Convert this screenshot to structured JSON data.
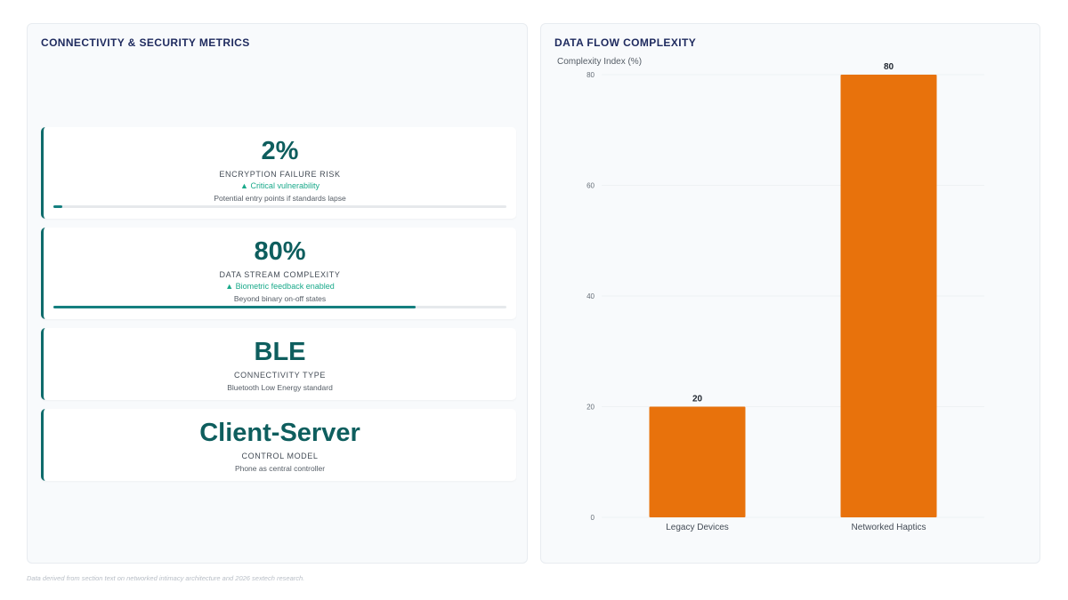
{
  "left_panel": {
    "title": "CONNECTIVITY & SECURITY METRICS",
    "kpis": [
      {
        "value": "2%",
        "label": "ENCRYPTION FAILURE RISK",
        "trend": "▲ Critical vulnerability",
        "desc": "Potential entry points if standards lapse",
        "progress_percent": 2
      },
      {
        "value": "80%",
        "label": "DATA STREAM COMPLEXITY",
        "trend": "▲ Biometric feedback enabled",
        "desc": "Beyond binary on-off states",
        "progress_percent": 80
      },
      {
        "value": "BLE",
        "label": "CONNECTIVITY TYPE",
        "desc": "Bluetooth Low Energy standard"
      },
      {
        "value": "Client-Server",
        "label": "CONTROL MODEL",
        "desc": "Phone as central controller"
      }
    ]
  },
  "right_panel": {
    "title": "DATA FLOW COMPLEXITY"
  },
  "chart_data": {
    "type": "bar",
    "title": "DATA FLOW COMPLEXITY",
    "ylabel": "Complexity Index (%)",
    "xlabel": "",
    "categories": [
      "Legacy Devices",
      "Networked Haptics"
    ],
    "values": [
      20,
      80
    ],
    "data_labels": [
      "20",
      "80"
    ],
    "ylim": [
      0,
      80
    ],
    "yticks": [
      0,
      20,
      40,
      60,
      80
    ],
    "ytick_labels": [
      "0",
      "20",
      "40",
      "60",
      "80"
    ],
    "grid": true,
    "bar_color": "#e8720c"
  },
  "footer": {
    "note": "Data derived from section text on networked intimacy architecture and 2026 sextech research."
  },
  "colors": {
    "accent": "#0e6b6b",
    "trend": "#19a98a",
    "bar": "#e8720c",
    "title": "#1e2a5e"
  }
}
